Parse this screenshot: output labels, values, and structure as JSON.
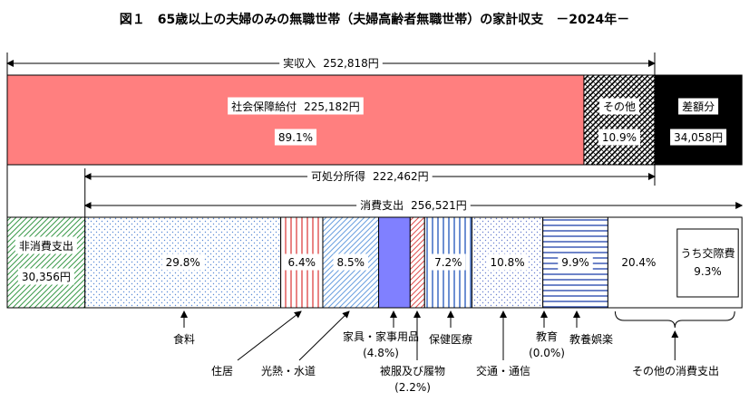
{
  "chart_data": {
    "type": "budget",
    "title": "図１　65歳以上の夫婦のみの無職世帯（夫婦高齢者無職世帯）の家計収支　－2024年－",
    "income": {
      "name": "実収入",
      "value": 252818,
      "value_label": "252,818円"
    },
    "income_segments": [
      {
        "name": "社会保障給付",
        "value": 225182,
        "value_label": "225,182円",
        "share": 89.1,
        "share_label": "89.1%",
        "color": "#ff7f7f",
        "pattern": "solid"
      },
      {
        "name": "その他",
        "share": 10.9,
        "share_label": "10.9%",
        "color": "#000000",
        "pattern": "crosshatch"
      }
    ],
    "deficit": {
      "name": "差額分",
      "value": 34058,
      "value_label": "34,058円",
      "color": "#000000"
    },
    "disposable_income": {
      "name": "可処分所得",
      "value": 222462,
      "value_label": "222,462円"
    },
    "consumption": {
      "name": "消費支出",
      "value": 256521,
      "value_label": "256,521円"
    },
    "non_consumption": {
      "name": "非消費支出",
      "value": 30356,
      "value_label": "30,356円",
      "color": "#3a9a4a",
      "pattern": "diagonal"
    },
    "categories": [
      {
        "name": "食料",
        "value": 29.8,
        "value_label": "29.8%",
        "color": "#5b8bd6",
        "pattern": "dots"
      },
      {
        "name": "住居",
        "value": 6.4,
        "value_label": "6.4%",
        "color": "#e05050",
        "pattern": "vstripes"
      },
      {
        "name": "光熱・水道",
        "value": 8.5,
        "value_label": "8.5%",
        "color": "#6aa0e0",
        "pattern": "diagonal"
      },
      {
        "name": "家具・家事用品",
        "value": 4.8,
        "value_label": "(4.8%)",
        "color": "#8080ff",
        "pattern": "solid"
      },
      {
        "name": "被服及び履物",
        "value": 2.2,
        "value_label": "(2.2%)",
        "color": "#e05050",
        "pattern": "diagonal"
      },
      {
        "name": "保健医療",
        "value": 7.2,
        "value_label": "7.2%",
        "color": "#3060c0",
        "pattern": "vstripes"
      },
      {
        "name": "交通・通信",
        "value": 10.8,
        "value_label": "10.8%",
        "color": "#6a80d0",
        "pattern": "dots"
      },
      {
        "name": "教育",
        "value": 0.0,
        "value_label": "(0.0%)",
        "color": "#3050b0",
        "pattern": "none"
      },
      {
        "name": "教養娯楽",
        "value": 9.9,
        "value_label": "9.9%",
        "color": "#3050b0",
        "pattern": "hstripes"
      },
      {
        "name": "その他の消費支出",
        "value": 20.4,
        "value_label": "20.4%",
        "color": "#ffffff",
        "pattern": "none"
      }
    ],
    "sub_item": {
      "name": "うち交際費",
      "value": 9.3,
      "value_label": "9.3%"
    }
  }
}
